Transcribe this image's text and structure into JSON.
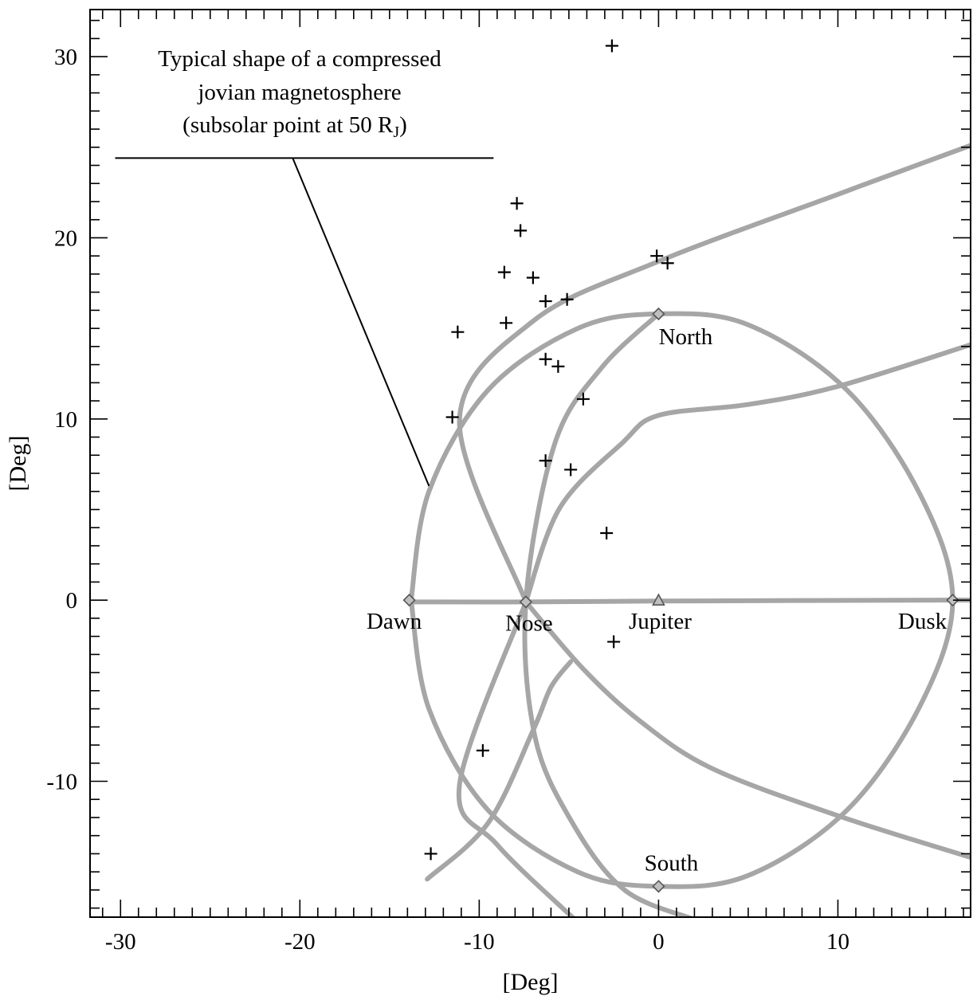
{
  "chart_data": {
    "type": "scatter",
    "xlabel": "[Deg]",
    "ylabel": "[Deg]",
    "xlim": [
      -31.7,
      17.4
    ],
    "ylim": [
      -17.5,
      32.6
    ],
    "x_ticks": [
      -30,
      -20,
      -10,
      0,
      10
    ],
    "x_tick_labels": [
      "-30",
      "-20",
      "-10",
      "0",
      "10"
    ],
    "y_ticks": [
      -10,
      0,
      10,
      20,
      30
    ],
    "y_tick_labels": [
      "-10",
      "0",
      "10",
      "20",
      "30"
    ],
    "grid": false,
    "series": [
      {
        "marker": "plus",
        "color": "#000000",
        "points": [
          [
            -2.6,
            30.6
          ],
          [
            -7.9,
            21.9
          ],
          [
            -7.7,
            20.4
          ],
          [
            -8.6,
            18.1
          ],
          [
            -7.0,
            17.8
          ],
          [
            -0.1,
            19.0
          ],
          [
            0.5,
            18.6
          ],
          [
            -6.3,
            16.5
          ],
          [
            -5.1,
            16.6
          ],
          [
            -11.2,
            14.8
          ],
          [
            -8.5,
            15.3
          ],
          [
            -6.3,
            13.3
          ],
          [
            -5.6,
            12.9
          ],
          [
            -4.2,
            11.1
          ],
          [
            -11.5,
            10.1
          ],
          [
            -6.3,
            7.7
          ],
          [
            -4.9,
            7.2
          ],
          [
            -2.9,
            3.7
          ],
          [
            -2.5,
            -2.3
          ],
          [
            -9.8,
            -8.3
          ],
          [
            -12.7,
            -14.0
          ]
        ]
      }
    ],
    "reference_points": [
      {
        "label": "Dawn",
        "x": -13.9,
        "y": 0.0,
        "marker": "diamond"
      },
      {
        "label": "Nose",
        "x": -7.4,
        "y": -0.1,
        "marker": "diamond"
      },
      {
        "label": "Jupiter",
        "x": 0.0,
        "y": 0.0,
        "marker": "triangle"
      },
      {
        "label": "Dusk",
        "x": 16.4,
        "y": 0.0,
        "marker": "diamond"
      },
      {
        "label": "North",
        "x": 0.0,
        "y": 15.8,
        "marker": "diamond"
      },
      {
        "label": "South",
        "x": 0.0,
        "y": -15.8,
        "marker": "diamond"
      }
    ],
    "curve_color": "#a6a6a6",
    "curves": [
      {
        "name": "outline",
        "points": [
          [
            -7.4,
            -0.1
          ],
          [
            -11.1,
            9.9
          ],
          [
            -7.0,
            15.4
          ],
          [
            0.0,
            18.7
          ],
          [
            10.0,
            22.4
          ],
          [
            17.4,
            25.1
          ]
        ]
      },
      {
        "name": "outline-lower",
        "points": [
          [
            -7.4,
            -0.1
          ],
          [
            -11.1,
            -10.2
          ],
          [
            -9.0,
            -13.5
          ],
          [
            -4.7,
            -17.6
          ]
        ]
      },
      {
        "name": "circle-meridian",
        "points": [
          [
            -13.8,
            0.0
          ],
          [
            -12.8,
            6.0
          ],
          [
            -9.5,
            11.6
          ],
          [
            -4.5,
            15.0
          ],
          [
            0.0,
            15.8
          ],
          [
            5.0,
            15.2
          ],
          [
            10.5,
            11.6
          ],
          [
            14.6,
            5.8
          ],
          [
            16.4,
            0.0
          ],
          [
            14.6,
            -5.8
          ],
          [
            10.5,
            -11.6
          ],
          [
            5.0,
            -15.2
          ],
          [
            0.0,
            -15.8
          ],
          [
            -4.5,
            -15.0
          ],
          [
            -9.5,
            -11.6
          ],
          [
            -12.8,
            -6.0
          ],
          [
            -13.8,
            0.0
          ]
        ]
      },
      {
        "name": "north-south",
        "points": [
          [
            0.0,
            15.8
          ],
          [
            -3.2,
            12.8
          ],
          [
            -5.8,
            8.6
          ],
          [
            -7.4,
            -0.1
          ],
          [
            -6.9,
            -7.5
          ],
          [
            -4.8,
            -12.3
          ],
          [
            -1.9,
            -16.0
          ],
          [
            1.9,
            -17.6
          ]
        ]
      },
      {
        "name": "equator",
        "points": [
          [
            -13.8,
            -0.1
          ],
          [
            -7.4,
            -0.1
          ],
          [
            0.0,
            -0.05
          ],
          [
            16.4,
            0.0
          ],
          [
            17.4,
            0.0
          ]
        ]
      },
      {
        "name": "north-leg",
        "points": [
          [
            -7.4,
            -0.1
          ],
          [
            -5.5,
            5.1
          ],
          [
            -2.0,
            8.7
          ],
          [
            0.0,
            10.2
          ],
          [
            5.0,
            10.8
          ],
          [
            10.0,
            11.8
          ],
          [
            17.4,
            14.1
          ]
        ]
      },
      {
        "name": "south-leg",
        "points": [
          [
            -7.4,
            -0.1
          ],
          [
            -4.2,
            -3.8
          ],
          [
            -1.0,
            -6.7
          ],
          [
            3.0,
            -9.3
          ],
          [
            10.0,
            -11.9
          ],
          [
            17.4,
            -14.2
          ]
        ]
      },
      {
        "name": "south-arc",
        "points": [
          [
            -12.9,
            -15.4
          ],
          [
            -9.5,
            -12.3
          ],
          [
            -7.0,
            -7.2
          ],
          [
            -6.0,
            -4.8
          ],
          [
            -4.9,
            -3.4
          ]
        ]
      }
    ],
    "annotation": {
      "lines": [
        "Typical shape of a compressed",
        "jovian magnetosphere",
        "(subsolar point at 50 R",
        "J",
        ")"
      ],
      "leader_start": [
        -20.4,
        24.4
      ],
      "leader_end": [
        -12.8,
        6.3
      ],
      "underline": [
        -30.3,
        -9.2
      ]
    }
  }
}
